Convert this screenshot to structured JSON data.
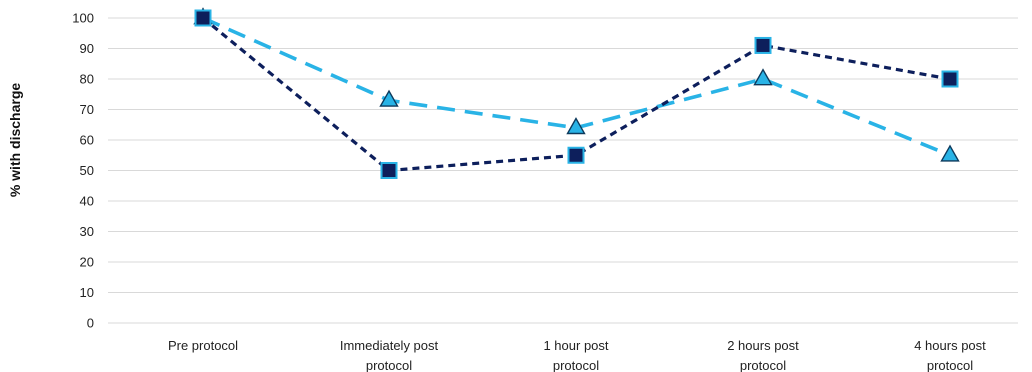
{
  "chart_data": {
    "type": "line",
    "title": "",
    "xlabel": "",
    "ylabel": "% with discharge",
    "ylim": [
      0,
      100
    ],
    "yticks": [
      0,
      10,
      20,
      30,
      40,
      50,
      60,
      70,
      80,
      90,
      100
    ],
    "grid": true,
    "categories": [
      [
        "Pre protocol"
      ],
      [
        "Immediately post",
        "protocol"
      ],
      [
        "1 hour post",
        "protocol"
      ],
      [
        "2 hours post",
        "protocol"
      ],
      [
        "4 hours post",
        "protocol"
      ]
    ],
    "series": [
      {
        "marker": "square",
        "line_color": "#0d1f5c",
        "marker_fill": "#0d1f5c",
        "marker_edge": "#29b3e6",
        "values": [
          100,
          50,
          55,
          91,
          80
        ]
      },
      {
        "marker": "triangle",
        "line_color": "#29b3e6",
        "marker_fill": "#29b3e6",
        "marker_edge": "#0d3a5c",
        "values": [
          100,
          73,
          64,
          80,
          55
        ]
      }
    ]
  }
}
